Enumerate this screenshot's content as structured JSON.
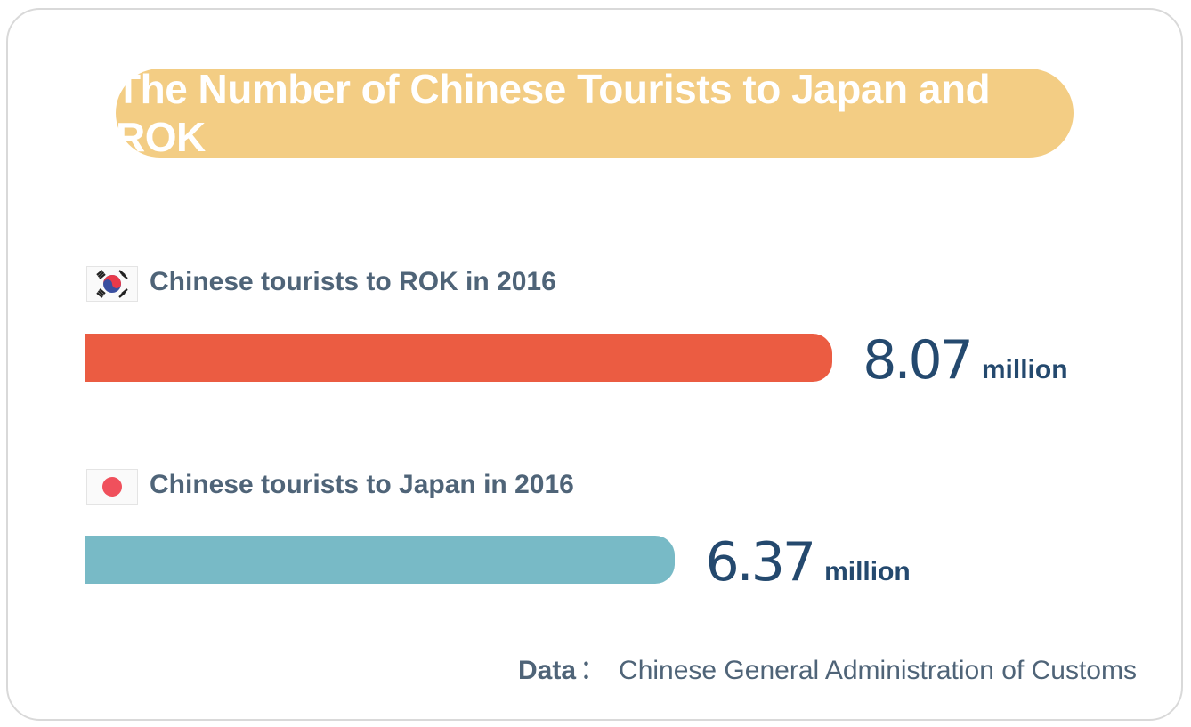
{
  "title": "The Number of Chinese Tourists to Japan and ROK",
  "colors": {
    "title_bg": "#f3cd84",
    "rok_bar": "#eb5c42",
    "japan_bar": "#78bac6",
    "text": "#4f6478",
    "value": "#24496e"
  },
  "source": {
    "key": "Data",
    "separator": "：",
    "text": "Chinese General Administration of Customs"
  },
  "chart_data": {
    "type": "bar",
    "orientation": "horizontal",
    "categories": [
      "Chinese tourists to ROK in 2016",
      "Chinese tourists to Japan in 2016"
    ],
    "values": [
      8.07,
      6.37
    ],
    "value_labels": [
      "8.07",
      "6.37"
    ],
    "unit": "million",
    "flags": [
      "south-korea-flag-icon",
      "japan-flag-icon"
    ],
    "bar_colors": [
      "#eb5c42",
      "#78bac6"
    ]
  }
}
